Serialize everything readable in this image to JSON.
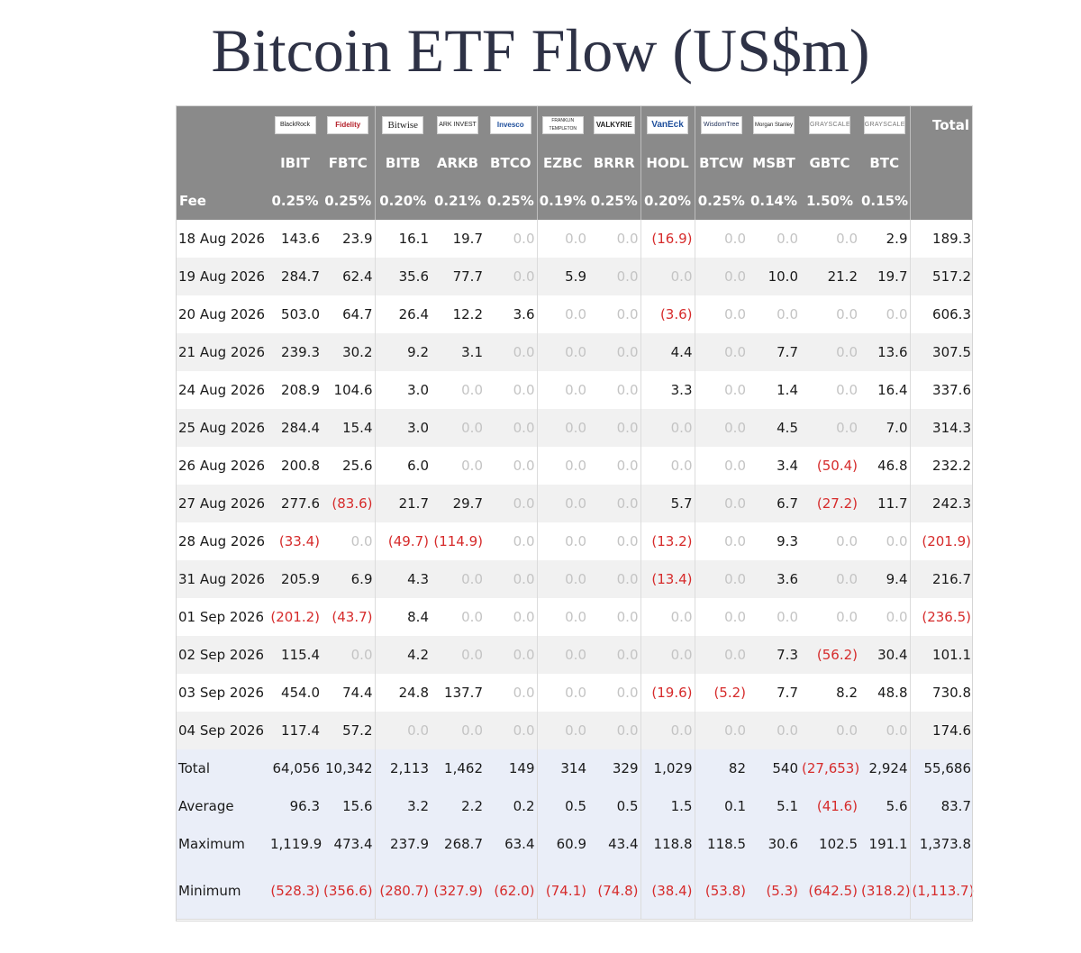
{
  "title": "Bitcoin ETF Flow (US$m)",
  "header": {
    "fee_label": "Fee",
    "total_label": "Total"
  },
  "funds": [
    {
      "issuer": "BlackRock",
      "ticker": "IBIT",
      "fee": "0.25%"
    },
    {
      "issuer": "Fidelity",
      "ticker": "FBTC",
      "fee": "0.25%"
    },
    {
      "issuer": "Bitwise",
      "ticker": "BITB",
      "fee": "0.20%"
    },
    {
      "issuer": "ARK INVEST",
      "ticker": "ARKB",
      "fee": "0.21%"
    },
    {
      "issuer": "Invesco",
      "ticker": "BTCO",
      "fee": "0.25%"
    },
    {
      "issuer": "FRANKLIN TEMPLETON",
      "ticker": "EZBC",
      "fee": "0.19%"
    },
    {
      "issuer": "VALKYRIE",
      "ticker": "BRRR",
      "fee": "0.25%"
    },
    {
      "issuer": "VanEck",
      "ticker": "HODL",
      "fee": "0.20%"
    },
    {
      "issuer": "WisdomTree",
      "ticker": "BTCW",
      "fee": "0.25%"
    },
    {
      "issuer": "Morgan Stanley",
      "ticker": "MSBT",
      "fee": "0.14%"
    },
    {
      "issuer": "GRAYSCALE",
      "ticker": "GBTC",
      "fee": "1.50%"
    },
    {
      "issuer": "GRAYSCALE",
      "ticker": "BTC",
      "fee": "0.15%"
    }
  ],
  "rows": [
    {
      "date": "18 Aug 2026",
      "values": [
        "143.6",
        "23.9",
        "16.1",
        "19.7",
        "0.0",
        "0.0",
        "0.0",
        "(16.9)",
        "0.0",
        "0.0",
        "0.0",
        "2.9"
      ],
      "total": "189.3"
    },
    {
      "date": "19 Aug 2026",
      "values": [
        "284.7",
        "62.4",
        "35.6",
        "77.7",
        "0.0",
        "5.9",
        "0.0",
        "0.0",
        "0.0",
        "10.0",
        "21.2",
        "19.7"
      ],
      "total": "517.2"
    },
    {
      "date": "20 Aug 2026",
      "values": [
        "503.0",
        "64.7",
        "26.4",
        "12.2",
        "3.6",
        "0.0",
        "0.0",
        "(3.6)",
        "0.0",
        "0.0",
        "0.0",
        "0.0"
      ],
      "total": "606.3"
    },
    {
      "date": "21 Aug 2026",
      "values": [
        "239.3",
        "30.2",
        "9.2",
        "3.1",
        "0.0",
        "0.0",
        "0.0",
        "4.4",
        "0.0",
        "7.7",
        "0.0",
        "13.6"
      ],
      "total": "307.5"
    },
    {
      "date": "24 Aug 2026",
      "values": [
        "208.9",
        "104.6",
        "3.0",
        "0.0",
        "0.0",
        "0.0",
        "0.0",
        "3.3",
        "0.0",
        "1.4",
        "0.0",
        "16.4"
      ],
      "total": "337.6"
    },
    {
      "date": "25 Aug 2026",
      "values": [
        "284.4",
        "15.4",
        "3.0",
        "0.0",
        "0.0",
        "0.0",
        "0.0",
        "0.0",
        "0.0",
        "4.5",
        "0.0",
        "7.0"
      ],
      "total": "314.3"
    },
    {
      "date": "26 Aug 2026",
      "values": [
        "200.8",
        "25.6",
        "6.0",
        "0.0",
        "0.0",
        "0.0",
        "0.0",
        "0.0",
        "0.0",
        "3.4",
        "(50.4)",
        "46.8"
      ],
      "total": "232.2"
    },
    {
      "date": "27 Aug 2026",
      "values": [
        "277.6",
        "(83.6)",
        "21.7",
        "29.7",
        "0.0",
        "0.0",
        "0.0",
        "5.7",
        "0.0",
        "6.7",
        "(27.2)",
        "11.7"
      ],
      "total": "242.3"
    },
    {
      "date": "28 Aug 2026",
      "values": [
        "(33.4)",
        "0.0",
        "(49.7)",
        "(114.9)",
        "0.0",
        "0.0",
        "0.0",
        "(13.2)",
        "0.0",
        "9.3",
        "0.0",
        "0.0"
      ],
      "total": "(201.9)"
    },
    {
      "date": "31 Aug 2026",
      "values": [
        "205.9",
        "6.9",
        "4.3",
        "0.0",
        "0.0",
        "0.0",
        "0.0",
        "(13.4)",
        "0.0",
        "3.6",
        "0.0",
        "9.4"
      ],
      "total": "216.7"
    },
    {
      "date": "01 Sep 2026",
      "values": [
        "(201.2)",
        "(43.7)",
        "8.4",
        "0.0",
        "0.0",
        "0.0",
        "0.0",
        "0.0",
        "0.0",
        "0.0",
        "0.0",
        "0.0"
      ],
      "total": "(236.5)"
    },
    {
      "date": "02 Sep 2026",
      "values": [
        "115.4",
        "0.0",
        "4.2",
        "0.0",
        "0.0",
        "0.0",
        "0.0",
        "0.0",
        "0.0",
        "7.3",
        "(56.2)",
        "30.4"
      ],
      "total": "101.1"
    },
    {
      "date": "03 Sep 2026",
      "values": [
        "454.0",
        "74.4",
        "24.8",
        "137.7",
        "0.0",
        "0.0",
        "0.0",
        "(19.6)",
        "(5.2)",
        "7.7",
        "8.2",
        "48.8"
      ],
      "total": "730.8"
    },
    {
      "date": "04 Sep 2026",
      "values": [
        "117.4",
        "57.2",
        "0.0",
        "0.0",
        "0.0",
        "0.0",
        "0.0",
        "0.0",
        "0.0",
        "0.0",
        "0.0",
        "0.0"
      ],
      "total": "174.6"
    }
  ],
  "summary": [
    {
      "label": "Total",
      "values": [
        "64,056",
        "10,342",
        "2,113",
        "1,462",
        "149",
        "314",
        "329",
        "1,029",
        "82",
        "540",
        "(27,653)",
        "2,924"
      ],
      "total": "55,686"
    },
    {
      "label": "Average",
      "values": [
        "96.3",
        "15.6",
        "3.2",
        "2.2",
        "0.2",
        "0.5",
        "0.5",
        "1.5",
        "0.1",
        "5.1",
        "(41.6)",
        "5.6"
      ],
      "total": "83.7"
    },
    {
      "label": "Maximum",
      "values": [
        "1,119.9",
        "473.4",
        "237.9",
        "268.7",
        "63.4",
        "60.9",
        "43.4",
        "118.8",
        "118.5",
        "30.6",
        "102.5",
        "191.1"
      ],
      "total": "1,373.8"
    },
    {
      "label": "Minimum",
      "values": [
        "(528.3)",
        "(356.6)",
        "(280.7)",
        "(327.9)",
        "(62.0)",
        "(74.1)",
        "(74.8)",
        "(38.4)",
        "(53.8)",
        "(5.3)",
        "(642.5)",
        "(318.2)"
      ],
      "total": "(1,113.7)"
    }
  ],
  "colors": {
    "header_bg": "#8a8a8a",
    "negative": "#d62b2b",
    "zero": "#c4c4c4",
    "summary_bg": "#eaeef8",
    "title": "#2e3246"
  }
}
